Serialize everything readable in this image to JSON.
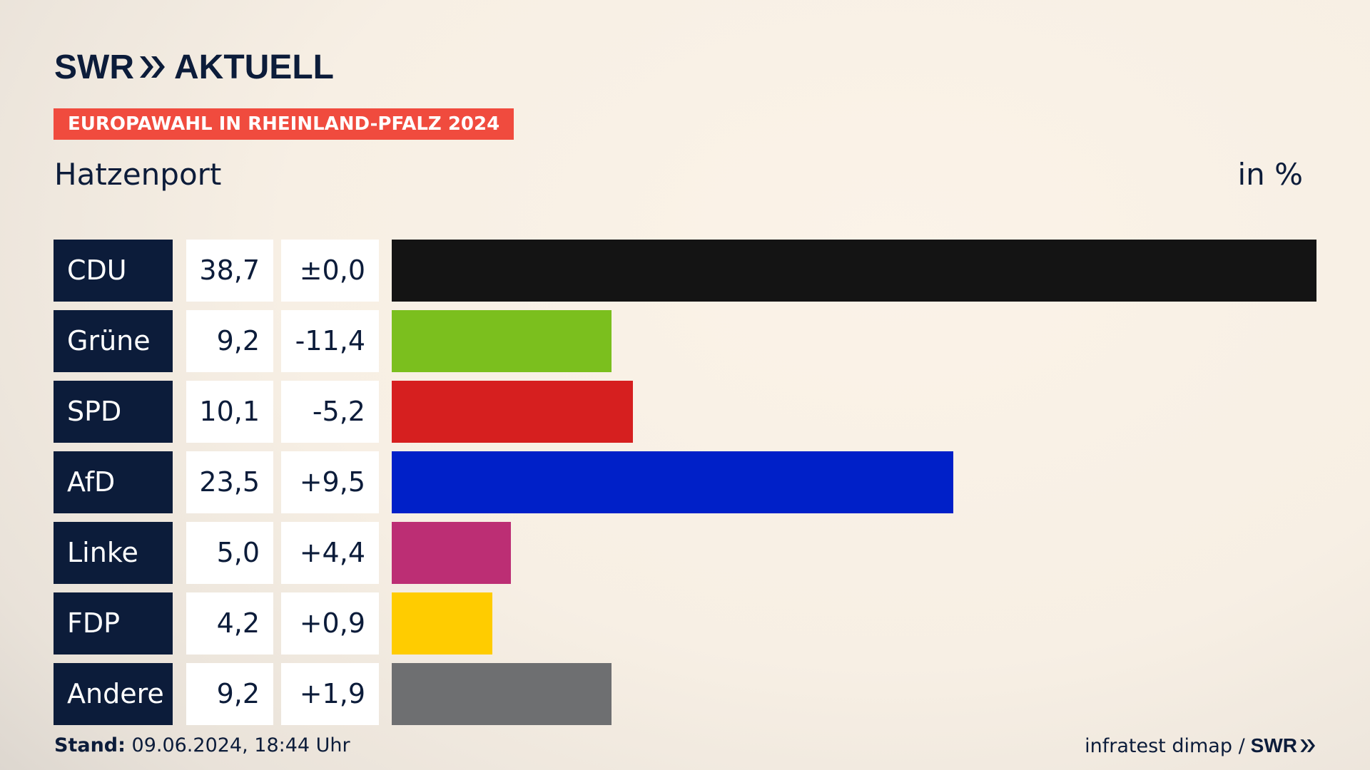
{
  "header": {
    "brand_left": "SWR",
    "brand_right": "AKTUELL",
    "badge": "EUROPAWAHL IN RHEINLAND-PFALZ 2024",
    "place": "Hatzenport",
    "unit": "in %"
  },
  "footer": {
    "stand_label": "Stand:",
    "stand_value": "09.06.2024, 18:44 Uhr",
    "source": "infratest dimap /",
    "source_logo": "SWR"
  },
  "chart_data": {
    "type": "bar",
    "orientation": "horizontal",
    "categories": [
      "CDU",
      "Grüne",
      "SPD",
      "AfD",
      "Linke",
      "FDP",
      "Andere"
    ],
    "values": [
      38.7,
      9.2,
      10.1,
      23.5,
      5.0,
      4.2,
      9.2
    ],
    "value_labels": [
      "38,7",
      "9,2",
      "10,1",
      "23,5",
      "5,0",
      "4,2",
      "9,2"
    ],
    "diff_labels": [
      "±0,0",
      "-11,4",
      "-5,2",
      "+9,5",
      "+4,4",
      "+0,9",
      "+1,9"
    ],
    "colors": [
      "#141414",
      "#7bbf1e",
      "#d61f1f",
      "#0020c8",
      "#bc2e74",
      "#ffcc00",
      "#6e6f71"
    ],
    "xlim": [
      0,
      38.7
    ],
    "grid": false,
    "legend": "none"
  }
}
